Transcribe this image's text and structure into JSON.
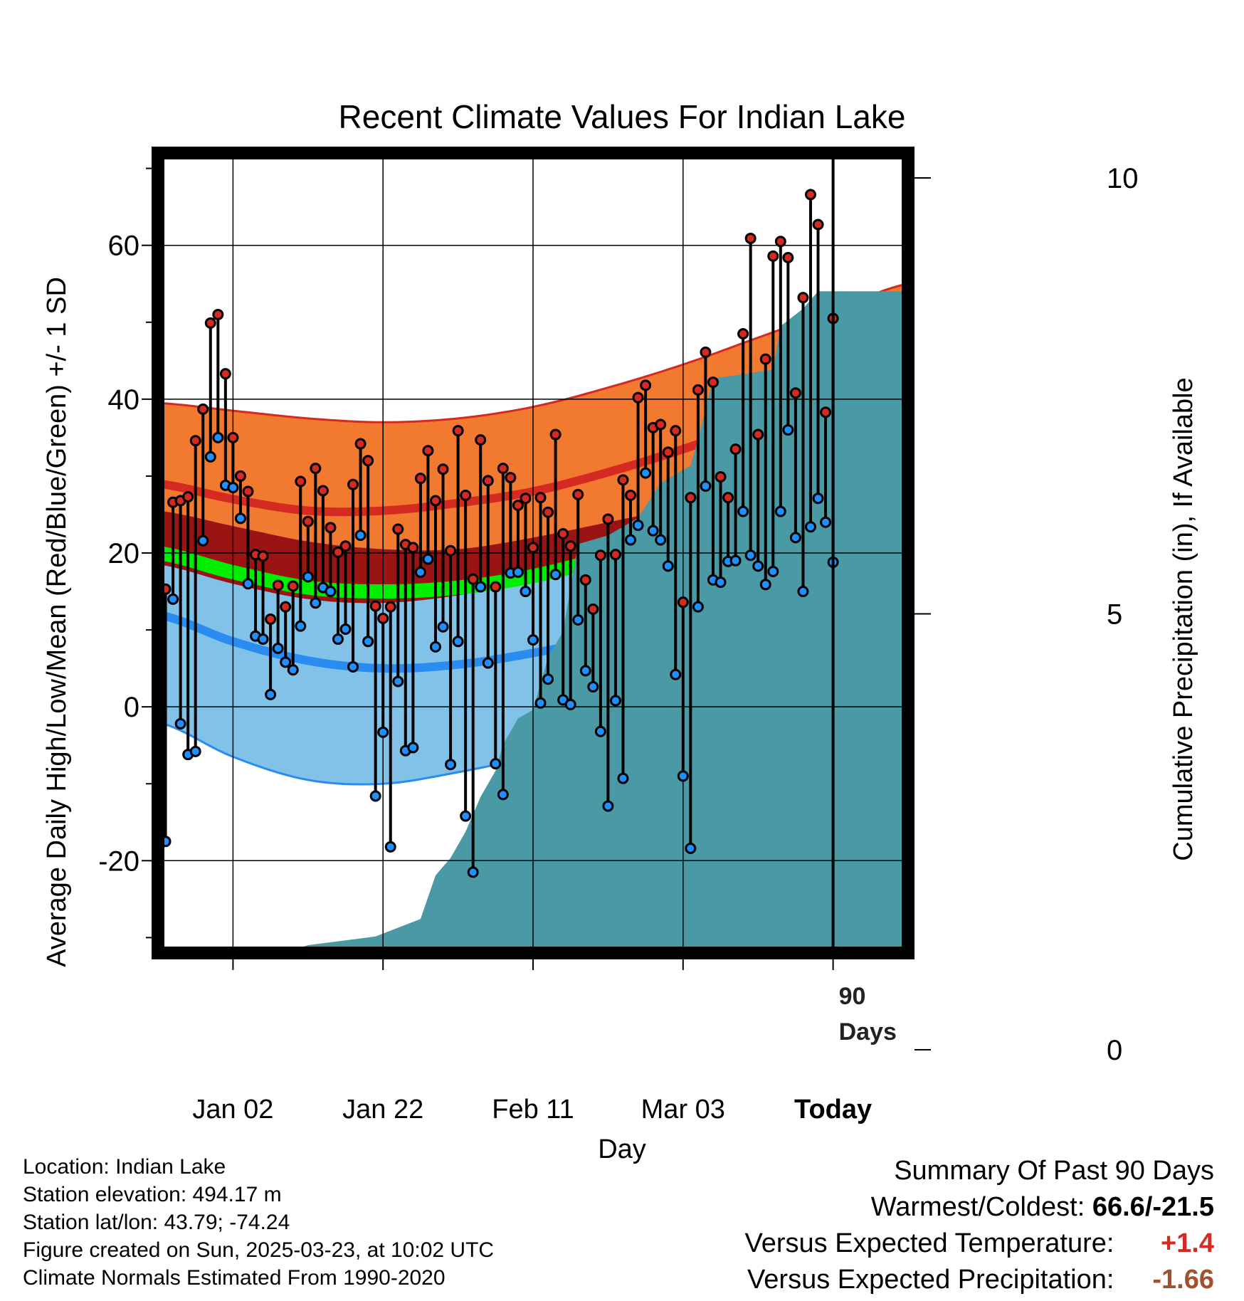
{
  "chart_data": {
    "type": "line",
    "title": "Recent Climate Values For Indian Lake",
    "xlabel": "Day",
    "ylabel_left": "Average Daily High/Low/Mean (Red/Blue/Green) +/- 1 SD",
    "ylabel_right": "Cumulative Precipitation (in), If Available",
    "x_tick_labels": [
      "Jan 02",
      "Jan 22",
      "Feb 11",
      "Mar 03",
      "Today"
    ],
    "x_tick_days": [
      10,
      30,
      50,
      70,
      90
    ],
    "x_range_days": [
      0,
      100
    ],
    "y_left_ticks": [
      60,
      40,
      20,
      0,
      -20
    ],
    "y_left_range": [
      -32,
      72
    ],
    "y_right_ticks": [
      15,
      10,
      5,
      0
    ],
    "y_right_range": [
      0,
      15
    ],
    "today_marker_label": "90 Days",
    "normals": {
      "day_points": [
        0,
        10,
        20,
        30,
        40,
        50,
        60,
        70,
        80,
        90,
        100
      ],
      "high_mean": [
        29,
        27,
        25.5,
        25.5,
        26.5,
        28,
        30.5,
        33.5,
        37,
        40.5,
        44.5
      ],
      "high_upper": [
        39.5,
        38.5,
        37.5,
        37,
        37.5,
        39,
        41.5,
        44.5,
        48,
        51.5,
        55
      ],
      "high_lower": [
        18.5,
        16,
        14,
        13.5,
        14.5,
        16.5,
        19,
        22,
        25.5,
        29.5,
        35.5
      ],
      "mean_mean": [
        20,
        17.5,
        15.5,
        15,
        15.5,
        17,
        19.5,
        22.5,
        26,
        30,
        34
      ],
      "low_mean": [
        12,
        8.5,
        6,
        5,
        5.5,
        7,
        9,
        12,
        15,
        18.5,
        23
      ],
      "low_upper": [
        25.5,
        23.5,
        21.5,
        20.5,
        20.5,
        22,
        24,
        26,
        28,
        31,
        32.5
      ],
      "low_lower": [
        -2,
        -6.5,
        -9.5,
        -10,
        -8.5,
        -6.5,
        -4.5,
        -2,
        1.5,
        7,
        14
      ]
    },
    "series": [
      {
        "name": "High",
        "color": "#d42a22",
        "values": [
          15.3,
          26.6,
          26.8,
          27.3,
          34.6,
          38.7,
          49.9,
          51.0,
          43.3,
          35.0,
          30.0,
          28.0,
          19.8,
          19.6,
          11.4,
          15.8,
          13.0,
          15.7,
          29.3,
          24.1,
          31.0,
          28.1,
          23.3,
          20.1,
          20.9,
          28.9,
          34.2,
          32.0,
          13.1,
          11.5,
          13.0,
          23.1,
          21.1,
          20.7,
          29.7,
          33.3,
          26.8,
          30.9,
          20.3,
          35.9,
          27.5,
          16.6,
          34.7,
          29.4,
          15.6,
          31.0,
          29.8,
          26.2,
          27.1,
          20.7,
          27.2,
          25.3,
          35.4,
          22.5,
          20.9,
          27.6,
          16.5,
          12.7,
          19.7,
          24.4,
          19.8,
          29.5,
          27.5,
          40.2,
          41.8,
          36.3,
          36.7,
          33.1,
          35.9,
          13.6,
          27.2,
          41.2,
          46.1,
          42.2,
          29.9,
          27.2,
          33.5,
          48.5,
          60.9,
          35.4,
          45.2,
          58.6,
          60.5,
          58.4,
          40.8,
          53.2,
          66.6,
          62.7,
          38.3,
          50.5
        ]
      },
      {
        "name": "Low",
        "color": "#1e90ff",
        "values": [
          -17.5,
          14.0,
          -2.2,
          -6.2,
          -5.8,
          21.6,
          32.5,
          35.0,
          28.8,
          28.5,
          24.5,
          16.0,
          9.2,
          8.8,
          1.6,
          7.6,
          5.8,
          4.8,
          10.5,
          16.9,
          13.5,
          15.5,
          15.0,
          8.8,
          10.1,
          5.2,
          22.3,
          8.5,
          -11.6,
          -3.3,
          -18.2,
          3.3,
          -5.7,
          -5.3,
          17.5,
          19.2,
          7.8,
          10.4,
          -7.5,
          8.5,
          -14.2,
          -21.5,
          15.6,
          5.7,
          -7.4,
          -11.4,
          17.4,
          17.5,
          15.0,
          8.7,
          0.5,
          3.6,
          17.2,
          0.9,
          0.3,
          11.3,
          4.7,
          2.6,
          -3.2,
          -12.9,
          0.8,
          -9.3,
          21.7,
          23.6,
          30.4,
          22.9,
          21.7,
          18.3,
          4.2,
          -9.0,
          -18.4,
          13.0,
          28.7,
          16.5,
          16.2,
          18.9,
          19.0,
          25.4,
          19.7,
          18.3,
          15.9,
          17.6,
          25.4,
          36.0,
          22.0,
          15.0,
          23.4,
          27.1,
          24.0,
          18.8
        ]
      }
    ],
    "cumulative_precipitation": {
      "days": [
        0,
        6,
        8,
        10,
        13,
        20,
        29,
        35,
        37,
        39,
        41,
        43,
        45,
        46,
        48,
        50,
        52,
        54,
        56,
        60,
        64,
        67,
        69,
        71,
        72,
        74,
        82,
        83,
        86,
        88,
        90,
        100
      ],
      "values": [
        0,
        0,
        0.4,
        0.9,
        1.0,
        1.2,
        1.3,
        1.5,
        2.0,
        2.2,
        2.5,
        2.9,
        3.2,
        3.5,
        3.8,
        3.9,
        4.5,
        4.8,
        5.8,
        5.9,
        6.1,
        6.5,
        6.6,
        6.7,
        7.0,
        7.7,
        7.8,
        8.3,
        8.5,
        8.7,
        8.7,
        8.7
      ]
    }
  },
  "info": {
    "location": "Location: Indian Lake",
    "elevation": "Station elevation: 494.17 m",
    "latlon": "Station lat/lon: 43.79; -74.24",
    "created": "Figure created on Sun, 2025-03-23, at 10:02 UTC",
    "normals_period": "Climate Normals Estimated From 1990-2020"
  },
  "summary": {
    "heading": "Summary Of Past 90 Days",
    "warm_cold_label": "Warmest/Coldest:",
    "warm_cold_value": "66.6/-21.5",
    "temp_label": "Versus Expected Temperature:",
    "temp_value": "+1.4",
    "temp_color": "#d42a22",
    "precip_label": "Versus Expected Precipitation:",
    "precip_value": "-1.66",
    "precip_color": "#a0522d"
  },
  "colors": {
    "high_band": "#f27a30",
    "high_line": "#d42a22",
    "overlap_band": "#9a1414",
    "mean_line": "#00ee00",
    "low_band": "#82c1e8",
    "low_line": "#2a8cf0",
    "precip_fill": "#4a9aa6"
  }
}
